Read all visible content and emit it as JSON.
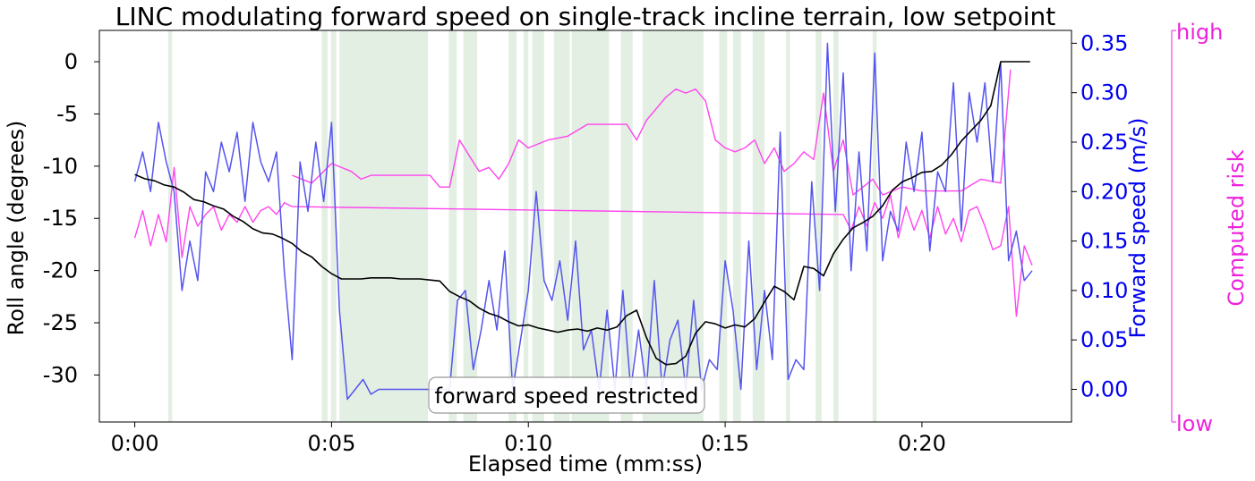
{
  "chart_data": {
    "type": "line",
    "title": "LINC modulating forward speed on single-track incline terrain, low setpoint",
    "xlabel": "Elapsed time (mm:ss)",
    "ylabel_left": "Roll angle (degrees)",
    "ylabel_right": "Forward speed (m/s)",
    "ylabel_risk": "Computed risk",
    "xlim": [
      -0.9,
      23.8
    ],
    "ylim_left": [
      -34.5,
      3.0
    ],
    "ylim_right": [
      -0.033,
      0.363
    ],
    "x_ticks": [
      0,
      5,
      10,
      15,
      20
    ],
    "x_tick_labels": [
      "0:00",
      "0:05",
      "0:10",
      "0:15",
      "0:20"
    ],
    "y_left_ticks": [
      0,
      -5,
      -10,
      -15,
      -20,
      -25,
      -30
    ],
    "y_left_tick_labels": [
      "0",
      "-5",
      "-10",
      "-15",
      "-20",
      "-25",
      "-30"
    ],
    "y_right_ticks": [
      0.0,
      0.05,
      0.1,
      0.15,
      0.2,
      0.25,
      0.3,
      0.35
    ],
    "y_right_tick_labels": [
      "0.00",
      "0.05",
      "0.10",
      "0.15",
      "0.20",
      "0.25",
      "0.30",
      "0.35"
    ],
    "risk_labels": {
      "high": "high",
      "low": "low"
    },
    "annotation": "forward speed restricted",
    "colors": {
      "roll": "#000000",
      "speed": "#5555ee",
      "risk": "#ff44ee",
      "risk_axis": "#ee22dd",
      "speed_axis": "#0000ee",
      "shade": "#e3efe3"
    },
    "restricted_intervals": [
      [
        0.85,
        0.95
      ],
      [
        4.75,
        4.9
      ],
      [
        4.98,
        5.12
      ],
      [
        5.2,
        7.45
      ],
      [
        7.98,
        8.18
      ],
      [
        8.35,
        8.7
      ],
      [
        9.5,
        9.7
      ],
      [
        9.88,
        10.0
      ],
      [
        10.1,
        10.4
      ],
      [
        10.65,
        11.05
      ],
      [
        11.1,
        12.05
      ],
      [
        12.35,
        12.65
      ],
      [
        12.9,
        14.45
      ],
      [
        14.85,
        15.05
      ],
      [
        15.2,
        15.4
      ],
      [
        15.7,
        16.0
      ],
      [
        16.55,
        16.65
      ],
      [
        17.3,
        17.45
      ],
      [
        17.75,
        17.88
      ],
      [
        18.75,
        18.85
      ]
    ],
    "series": [
      {
        "name": "Roll angle",
        "axis": "left",
        "x": [
          0,
          0.25,
          0.5,
          0.75,
          1.0,
          1.25,
          1.5,
          1.75,
          2.0,
          2.25,
          2.5,
          2.75,
          3.0,
          3.25,
          3.5,
          3.75,
          4.0,
          4.25,
          4.5,
          4.75,
          5.0,
          5.25,
          5.5,
          5.75,
          6.0,
          6.25,
          6.5,
          6.75,
          7.0,
          7.25,
          7.5,
          7.75,
          8.0,
          8.25,
          8.5,
          8.75,
          9.0,
          9.25,
          9.5,
          9.75,
          10.0,
          10.25,
          10.5,
          10.75,
          11.0,
          11.25,
          11.5,
          11.75,
          12.0,
          12.25,
          12.5,
          12.75,
          13.0,
          13.25,
          13.5,
          13.75,
          14.0,
          14.25,
          14.5,
          14.75,
          15.0,
          15.25,
          15.5,
          15.75,
          16.0,
          16.25,
          16.5,
          16.75,
          17.0,
          17.25,
          17.5,
          17.75,
          18.0,
          18.25,
          18.5,
          18.75,
          19.0,
          19.25,
          19.5,
          19.75,
          20.0,
          20.25,
          20.5,
          20.75,
          21.0,
          21.25,
          21.5,
          21.75,
          22.0,
          22.25,
          22.5,
          22.75
        ],
        "y": [
          -10.8,
          -11.2,
          -11.4,
          -11.8,
          -12.0,
          -12.5,
          -13.2,
          -13.4,
          -13.8,
          -14.1,
          -14.8,
          -15.3,
          -16.0,
          -16.4,
          -16.5,
          -16.9,
          -17.4,
          -18.2,
          -18.7,
          -19.6,
          -20.3,
          -20.8,
          -20.8,
          -20.8,
          -20.7,
          -20.7,
          -20.7,
          -20.8,
          -20.8,
          -20.8,
          -20.9,
          -21.0,
          -22.0,
          -22.5,
          -22.9,
          -23.6,
          -24.1,
          -24.4,
          -24.9,
          -25.3,
          -25.2,
          -25.5,
          -25.7,
          -25.9,
          -25.7,
          -25.6,
          -25.8,
          -25.5,
          -25.7,
          -25.4,
          -24.3,
          -23.8,
          -26.4,
          -28.4,
          -29.0,
          -28.9,
          -28.2,
          -26.0,
          -24.9,
          -25.1,
          -25.5,
          -25.2,
          -25.4,
          -24.6,
          -23.0,
          -21.5,
          -22.0,
          -22.8,
          -19.6,
          -19.8,
          -20.5,
          -18.4,
          -17.0,
          -15.9,
          -15.4,
          -14.8,
          -13.8,
          -12.3,
          -11.5,
          -11.1,
          -10.6,
          -10.5,
          -9.9,
          -8.9,
          -7.6,
          -6.6,
          -5.6,
          -4.2,
          0.0,
          0.0,
          0.0,
          0.0
        ]
      },
      {
        "name": "Forward speed",
        "axis": "right",
        "x": [
          0,
          0.2,
          0.4,
          0.6,
          0.8,
          1.0,
          1.2,
          1.4,
          1.6,
          1.8,
          2.0,
          2.2,
          2.4,
          2.6,
          2.8,
          3.0,
          3.2,
          3.4,
          3.6,
          3.8,
          4.0,
          4.2,
          4.4,
          4.6,
          4.8,
          5.0,
          5.2,
          5.4,
          5.6,
          5.8,
          6.0,
          6.2,
          6.4,
          6.6,
          6.8,
          7.0,
          7.2,
          7.4,
          7.6,
          7.8,
          8.0,
          8.2,
          8.4,
          8.6,
          8.8,
          9.0,
          9.2,
          9.4,
          9.6,
          9.8,
          10.0,
          10.2,
          10.4,
          10.6,
          10.8,
          11.0,
          11.2,
          11.4,
          11.6,
          11.8,
          12.0,
          12.2,
          12.4,
          12.6,
          12.8,
          13.0,
          13.2,
          13.4,
          13.6,
          13.8,
          14.0,
          14.2,
          14.4,
          14.6,
          14.8,
          15.0,
          15.2,
          15.4,
          15.6,
          15.8,
          16.0,
          16.2,
          16.4,
          16.6,
          16.8,
          17.0,
          17.2,
          17.4,
          17.6,
          17.8,
          18.0,
          18.2,
          18.4,
          18.6,
          18.8,
          19.0,
          19.2,
          19.4,
          19.6,
          19.8,
          20.0,
          20.2,
          20.4,
          20.6,
          20.8,
          21.0,
          21.2,
          21.4,
          21.6,
          21.8,
          22.0,
          22.2,
          22.4,
          22.6,
          22.8
        ],
        "y": [
          0.21,
          0.24,
          0.2,
          0.27,
          0.23,
          0.2,
          0.1,
          0.15,
          0.11,
          0.22,
          0.2,
          0.25,
          0.22,
          0.26,
          0.19,
          0.27,
          0.23,
          0.21,
          0.24,
          0.12,
          0.03,
          0.23,
          0.18,
          0.25,
          0.19,
          0.27,
          0.08,
          -0.01,
          0.0,
          0.01,
          -0.005,
          0.0,
          0.0,
          0.0,
          0.0,
          0.0,
          0.0,
          0.0,
          0.0,
          0.0,
          0.0,
          0.09,
          0.1,
          0.02,
          0.06,
          0.11,
          0.06,
          0.14,
          0.0,
          0.05,
          0.1,
          0.2,
          0.11,
          0.09,
          0.13,
          0.07,
          0.15,
          0.04,
          0.06,
          0.0,
          0.08,
          0.0,
          0.1,
          0.0,
          0.06,
          0.0,
          0.11,
          0.0,
          0.05,
          0.07,
          0.0,
          0.09,
          0.0,
          0.03,
          0.02,
          0.13,
          0.08,
          0.0,
          0.15,
          0.02,
          0.1,
          0.03,
          0.26,
          0.01,
          0.03,
          0.02,
          0.21,
          0.1,
          0.35,
          0.18,
          0.32,
          0.12,
          0.24,
          0.14,
          0.34,
          0.13,
          0.18,
          0.16,
          0.25,
          0.2,
          0.26,
          0.14,
          0.22,
          0.2,
          0.31,
          0.16,
          0.3,
          0.25,
          0.31,
          0.21,
          0.33,
          0.13,
          0.16,
          0.11,
          0.12
        ]
      },
      {
        "name": "Computed risk (upper)",
        "axis": "risk",
        "x": [
          4.0,
          4.5,
          5.0,
          5.5,
          5.75,
          6.0,
          6.5,
          7.0,
          7.5,
          7.75,
          8.0,
          8.25,
          8.5,
          8.75,
          9.0,
          9.25,
          9.5,
          9.75,
          10.0,
          10.5,
          11.0,
          11.5,
          12.0,
          12.5,
          12.75,
          13.0,
          13.25,
          13.5,
          13.75,
          14.0,
          14.25,
          14.5,
          14.75,
          15.0,
          15.25,
          15.5,
          15.75,
          16.0,
          16.25,
          16.5,
          16.75,
          17.0,
          17.25,
          17.5,
          17.75,
          18.0,
          18.25,
          18.5,
          18.75,
          19.0,
          19.5,
          20.0,
          20.5,
          21.0,
          21.5,
          22.0,
          22.25
        ],
        "y": [
          0.63,
          0.61,
          0.66,
          0.64,
          0.62,
          0.63,
          0.63,
          0.63,
          0.63,
          0.6,
          0.6,
          0.72,
          0.68,
          0.64,
          0.65,
          0.62,
          0.66,
          0.72,
          0.7,
          0.72,
          0.73,
          0.76,
          0.76,
          0.76,
          0.72,
          0.77,
          0.8,
          0.83,
          0.85,
          0.84,
          0.85,
          0.82,
          0.72,
          0.7,
          0.69,
          0.7,
          0.72,
          0.66,
          0.7,
          0.64,
          0.66,
          0.69,
          0.67,
          0.84,
          0.64,
          0.72,
          0.58,
          0.6,
          0.62,
          0.58,
          0.6,
          0.59,
          0.59,
          0.59,
          0.62,
          0.61,
          0.9
        ]
      },
      {
        "name": "Computed risk (lower)",
        "axis": "risk",
        "x": [
          0.0,
          0.2,
          0.4,
          0.6,
          0.8,
          1.0,
          1.2,
          1.4,
          1.6,
          1.8,
          2.0,
          2.2,
          2.4,
          2.6,
          2.8,
          3.0,
          3.2,
          3.4,
          3.6,
          3.8,
          4.0,
          18.0,
          18.2,
          18.4,
          18.6,
          18.8,
          19.0,
          19.2,
          19.4,
          19.6,
          19.8,
          20.0,
          20.2,
          20.4,
          20.6,
          20.8,
          21.0,
          21.2,
          21.4,
          21.6,
          21.8,
          22.0,
          22.2,
          22.4,
          22.6,
          22.8
        ],
        "y": [
          0.47,
          0.54,
          0.45,
          0.53,
          0.46,
          0.65,
          0.42,
          0.55,
          0.5,
          0.53,
          0.55,
          0.49,
          0.53,
          0.51,
          0.55,
          0.51,
          0.54,
          0.55,
          0.53,
          0.56,
          0.55,
          0.53,
          0.49,
          0.55,
          0.5,
          0.56,
          0.52,
          0.58,
          0.47,
          0.55,
          0.49,
          0.54,
          0.47,
          0.55,
          0.48,
          0.52,
          0.46,
          0.54,
          0.55,
          0.5,
          0.44,
          0.45,
          0.55,
          0.27,
          0.45,
          0.4
        ]
      }
    ]
  }
}
